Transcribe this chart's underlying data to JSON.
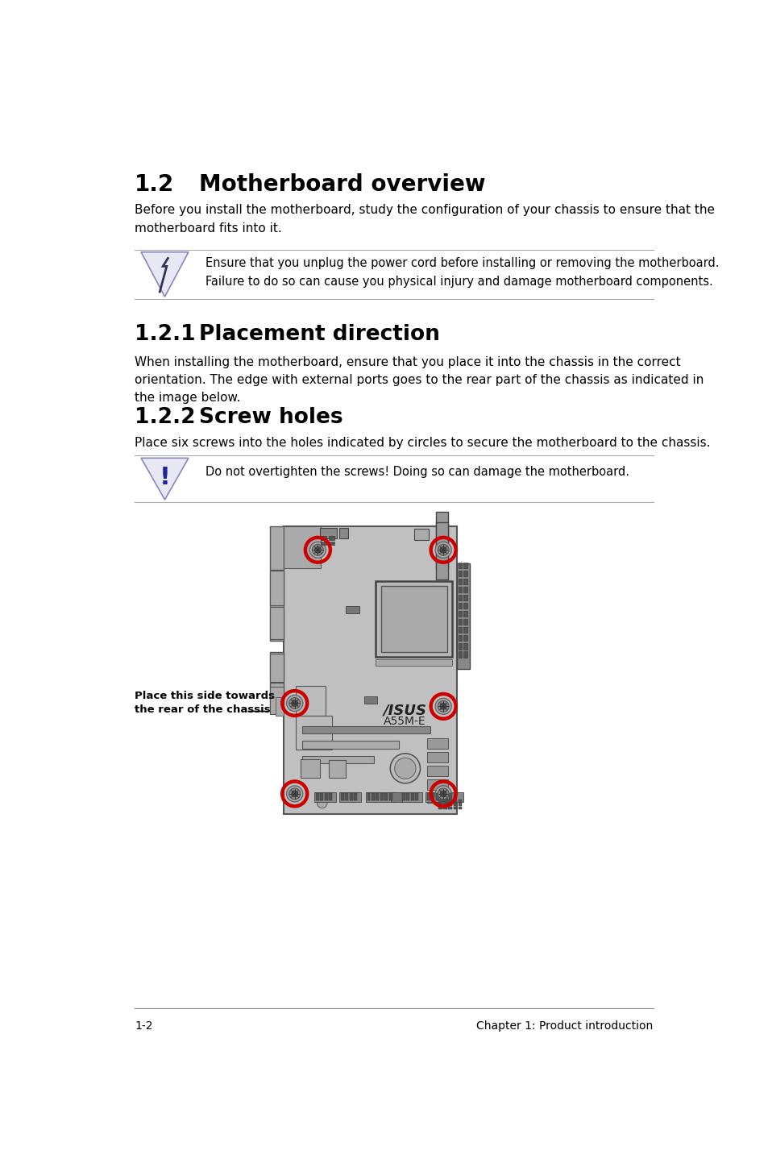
{
  "title_num": "1.2",
  "title_text": "Motherboard overview",
  "intro_text": "Before you install the motherboard, study the configuration of your chassis to ensure that the\nmotherboard fits into it.",
  "warning1_text": "Ensure that you unplug the power cord before installing or removing the motherboard.\nFailure to do so can cause you physical injury and damage motherboard components.",
  "section121_num": "1.2.1",
  "section121_text": "Placement direction",
  "placement_text": "When installing the motherboard, ensure that you place it into the chassis in the correct\norientation. The edge with external ports goes to the rear part of the chassis as indicated in\nthe image below.",
  "section122_num": "1.2.2",
  "section122_text": "Screw holes",
  "screw_text": "Place six screws into the holes indicated by circles to secure the motherboard to the chassis.",
  "warning2_text": "Do not overtighten the screws! Doing so can damage the motherboard.",
  "label_text": "Place this side towards\nthe rear of the chassis",
  "footer_left": "1-2",
  "footer_right": "Chapter 1: Product introduction",
  "bg_color": "#ffffff",
  "text_color": "#000000",
  "board_color": "#c0c0c0",
  "board_edge": "#555555",
  "screw_circle_color": "#cc0000",
  "warn_line_color": "#aaaaaa",
  "tri_face": "#e8e8f5",
  "tri_edge": "#8888bb"
}
